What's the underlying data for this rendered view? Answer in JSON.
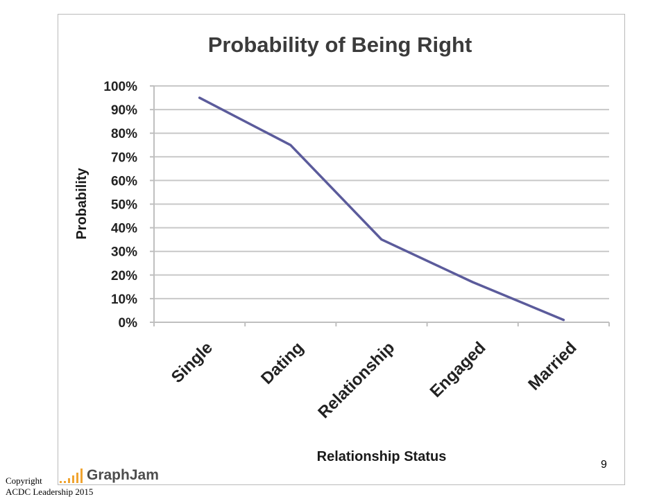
{
  "chart_data": {
    "type": "line",
    "title": "Probability of Being Right",
    "xlabel": "Relationship Status",
    "ylabel": "Probability",
    "categories": [
      "Single",
      "Dating",
      "Relationship",
      "Engaged",
      "Married"
    ],
    "series": [
      {
        "values": [
          0.95,
          0.75,
          0.35,
          0.17,
          0.01
        ]
      }
    ],
    "ylim": [
      0,
      1
    ],
    "yticks": [
      "0%",
      "10%",
      "20%",
      "30%",
      "40%",
      "50%",
      "60%",
      "70%",
      "80%",
      "90%",
      "100%"
    ],
    "grid": true,
    "line_color": "#5b5b9b",
    "grid_color": "#c8c8c8"
  },
  "footer": {
    "logo_text": "GraphJam",
    "page_number": "9",
    "copyright_line1": "Copyright",
    "copyright_line2": "ACDC Leadership 2015"
  }
}
